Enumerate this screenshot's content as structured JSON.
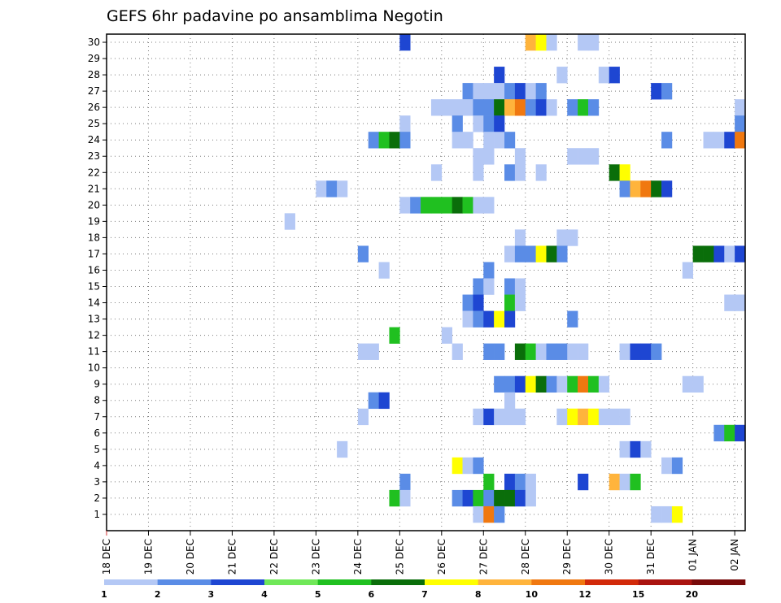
{
  "chart_data": {
    "type": "heatmap",
    "title": "GEFS 6hr padavine po ansamblima Negotin",
    "xlabel": "",
    "ylabel": "",
    "x_tick_labels": [
      "18 DEC",
      "19 DEC",
      "20 DEC",
      "21 DEC",
      "22 DEC",
      "23 DEC",
      "24 DEC",
      "25 DEC",
      "26 DEC",
      "27 DEC",
      "28 DEC",
      "29 DEC",
      "30 DEC",
      "31 DEC",
      "01 JAN",
      "02 JAN"
    ],
    "y_tick_labels": [
      "1",
      "2",
      "3",
      "4",
      "5",
      "6",
      "7",
      "8",
      "9",
      "10",
      "11",
      "12",
      "13",
      "14",
      "15",
      "16",
      "17",
      "18",
      "19",
      "20",
      "21",
      "22",
      "23",
      "24",
      "25",
      "26",
      "27",
      "28",
      "29",
      "30"
    ],
    "x_unit": "6-hour step from 18 DEC 00Z",
    "grid": true,
    "colorbar": {
      "levels": [
        "1",
        "2",
        "3",
        "4",
        "5",
        "6",
        "7",
        "8",
        "10",
        "12",
        "15",
        "20"
      ],
      "colors": [
        "#b4c8f5",
        "#5a8ce6",
        "#1e46d2",
        "#70e858",
        "#20c020",
        "#0a6e0a",
        "#ffff00",
        "#ffb43c",
        "#f07810",
        "#d22a0a",
        "#aa1410",
        "#780a0a"
      ]
    },
    "cells": [
      {
        "m": 30,
        "t": 28,
        "v": 3
      },
      {
        "m": 30,
        "t": 40,
        "v": 8
      },
      {
        "m": 30,
        "t": 41,
        "v": 7
      },
      {
        "m": 30,
        "t": 42,
        "v": 1
      },
      {
        "m": 30,
        "t": 45,
        "v": 1
      },
      {
        "m": 30,
        "t": 46,
        "v": 1
      },
      {
        "m": 28,
        "t": 37,
        "v": 3
      },
      {
        "m": 28,
        "t": 43,
        "v": 1
      },
      {
        "m": 28,
        "t": 47,
        "v": 1
      },
      {
        "m": 28,
        "t": 48,
        "v": 3
      },
      {
        "m": 27,
        "t": 34,
        "v": 2
      },
      {
        "m": 27,
        "t": 35,
        "v": 1
      },
      {
        "m": 27,
        "t": 36,
        "v": 1
      },
      {
        "m": 27,
        "t": 37,
        "v": 1
      },
      {
        "m": 27,
        "t": 38,
        "v": 2
      },
      {
        "m": 27,
        "t": 39,
        "v": 3
      },
      {
        "m": 27,
        "t": 40,
        "v": 1
      },
      {
        "m": 27,
        "t": 41,
        "v": 2
      },
      {
        "m": 27,
        "t": 52,
        "v": 3
      },
      {
        "m": 27,
        "t": 53,
        "v": 2
      },
      {
        "m": 26,
        "t": 31,
        "v": 1
      },
      {
        "m": 26,
        "t": 32,
        "v": 1
      },
      {
        "m": 26,
        "t": 33,
        "v": 1
      },
      {
        "m": 26,
        "t": 34,
        "v": 1
      },
      {
        "m": 26,
        "t": 35,
        "v": 2
      },
      {
        "m": 26,
        "t": 36,
        "v": 2
      },
      {
        "m": 26,
        "t": 37,
        "v": 6
      },
      {
        "m": 26,
        "t": 38,
        "v": 8
      },
      {
        "m": 26,
        "t": 39,
        "v": 10
      },
      {
        "m": 26,
        "t": 40,
        "v": 2
      },
      {
        "m": 26,
        "t": 41,
        "v": 3
      },
      {
        "m": 26,
        "t": 42,
        "v": 1
      },
      {
        "m": 26,
        "t": 44,
        "v": 2
      },
      {
        "m": 26,
        "t": 45,
        "v": 5
      },
      {
        "m": 26,
        "t": 46,
        "v": 2
      },
      {
        "m": 26,
        "t": 60,
        "v": 1
      },
      {
        "m": 25,
        "t": 28,
        "v": 1
      },
      {
        "m": 25,
        "t": 33,
        "v": 2
      },
      {
        "m": 25,
        "t": 35,
        "v": 1
      },
      {
        "m": 25,
        "t": 36,
        "v": 2
      },
      {
        "m": 25,
        "t": 37,
        "v": 3
      },
      {
        "m": 25,
        "t": 60,
        "v": 2
      },
      {
        "m": 24,
        "t": 25,
        "v": 2
      },
      {
        "m": 24,
        "t": 26,
        "v": 5
      },
      {
        "m": 24,
        "t": 27,
        "v": 6
      },
      {
        "m": 24,
        "t": 28,
        "v": 2
      },
      {
        "m": 24,
        "t": 33,
        "v": 1
      },
      {
        "m": 24,
        "t": 34,
        "v": 1
      },
      {
        "m": 24,
        "t": 36,
        "v": 1
      },
      {
        "m": 24,
        "t": 37,
        "v": 1
      },
      {
        "m": 24,
        "t": 38,
        "v": 2
      },
      {
        "m": 24,
        "t": 53,
        "v": 2
      },
      {
        "m": 24,
        "t": 57,
        "v": 1
      },
      {
        "m": 24,
        "t": 58,
        "v": 1
      },
      {
        "m": 24,
        "t": 59,
        "v": 3
      },
      {
        "m": 24,
        "t": 60,
        "v": 10
      },
      {
        "m": 23,
        "t": 35,
        "v": 1
      },
      {
        "m": 23,
        "t": 36,
        "v": 1
      },
      {
        "m": 23,
        "t": 39,
        "v": 1
      },
      {
        "m": 23,
        "t": 44,
        "v": 1
      },
      {
        "m": 23,
        "t": 45,
        "v": 1
      },
      {
        "m": 23,
        "t": 46,
        "v": 1
      },
      {
        "m": 22,
        "t": 31,
        "v": 1
      },
      {
        "m": 22,
        "t": 35,
        "v": 1
      },
      {
        "m": 22,
        "t": 38,
        "v": 2
      },
      {
        "m": 22,
        "t": 39,
        "v": 1
      },
      {
        "m": 22,
        "t": 41,
        "v": 1
      },
      {
        "m": 22,
        "t": 48,
        "v": 6
      },
      {
        "m": 22,
        "t": 49,
        "v": 7
      },
      {
        "m": 21,
        "t": 20,
        "v": 1
      },
      {
        "m": 21,
        "t": 21,
        "v": 2
      },
      {
        "m": 21,
        "t": 22,
        "v": 1
      },
      {
        "m": 21,
        "t": 49,
        "v": 2
      },
      {
        "m": 21,
        "t": 50,
        "v": 8
      },
      {
        "m": 21,
        "t": 51,
        "v": 10
      },
      {
        "m": 21,
        "t": 52,
        "v": 6
      },
      {
        "m": 21,
        "t": 53,
        "v": 3
      },
      {
        "m": 20,
        "t": 28,
        "v": 1
      },
      {
        "m": 20,
        "t": 29,
        "v": 2
      },
      {
        "m": 20,
        "t": 30,
        "v": 5
      },
      {
        "m": 20,
        "t": 31,
        "v": 5
      },
      {
        "m": 20,
        "t": 32,
        "v": 5
      },
      {
        "m": 20,
        "t": 33,
        "v": 6
      },
      {
        "m": 20,
        "t": 34,
        "v": 5
      },
      {
        "m": 20,
        "t": 35,
        "v": 1
      },
      {
        "m": 20,
        "t": 36,
        "v": 1
      },
      {
        "m": 19,
        "t": 17,
        "v": 1
      },
      {
        "m": 18,
        "t": 39,
        "v": 1
      },
      {
        "m": 18,
        "t": 43,
        "v": 1
      },
      {
        "m": 18,
        "t": 44,
        "v": 1
      },
      {
        "m": 17,
        "t": 24,
        "v": 2
      },
      {
        "m": 17,
        "t": 38,
        "v": 1
      },
      {
        "m": 17,
        "t": 39,
        "v": 2
      },
      {
        "m": 17,
        "t": 40,
        "v": 2
      },
      {
        "m": 17,
        "t": 41,
        "v": 7
      },
      {
        "m": 17,
        "t": 42,
        "v": 6
      },
      {
        "m": 17,
        "t": 43,
        "v": 2
      },
      {
        "m": 17,
        "t": 56,
        "v": 6
      },
      {
        "m": 17,
        "t": 57,
        "v": 6
      },
      {
        "m": 17,
        "t": 58,
        "v": 3
      },
      {
        "m": 17,
        "t": 59,
        "v": 1
      },
      {
        "m": 17,
        "t": 60,
        "v": 3
      },
      {
        "m": 16,
        "t": 26,
        "v": 1
      },
      {
        "m": 16,
        "t": 36,
        "v": 2
      },
      {
        "m": 16,
        "t": 55,
        "v": 1
      },
      {
        "m": 15,
        "t": 35,
        "v": 2
      },
      {
        "m": 15,
        "t": 36,
        "v": 1
      },
      {
        "m": 15,
        "t": 38,
        "v": 2
      },
      {
        "m": 15,
        "t": 39,
        "v": 1
      },
      {
        "m": 14,
        "t": 34,
        "v": 2
      },
      {
        "m": 14,
        "t": 35,
        "v": 3
      },
      {
        "m": 14,
        "t": 38,
        "v": 5
      },
      {
        "m": 14,
        "t": 39,
        "v": 1
      },
      {
        "m": 14,
        "t": 59,
        "v": 1
      },
      {
        "m": 14,
        "t": 60,
        "v": 1
      },
      {
        "m": 13,
        "t": 34,
        "v": 1
      },
      {
        "m": 13,
        "t": 35,
        "v": 2
      },
      {
        "m": 13,
        "t": 36,
        "v": 3
      },
      {
        "m": 13,
        "t": 37,
        "v": 7
      },
      {
        "m": 13,
        "t": 38,
        "v": 3
      },
      {
        "m": 13,
        "t": 44,
        "v": 2
      },
      {
        "m": 12,
        "t": 27,
        "v": 5
      },
      {
        "m": 12,
        "t": 32,
        "v": 1
      },
      {
        "m": 11,
        "t": 24,
        "v": 1
      },
      {
        "m": 11,
        "t": 25,
        "v": 1
      },
      {
        "m": 11,
        "t": 33,
        "v": 1
      },
      {
        "m": 11,
        "t": 36,
        "v": 2
      },
      {
        "m": 11,
        "t": 37,
        "v": 2
      },
      {
        "m": 11,
        "t": 39,
        "v": 6
      },
      {
        "m": 11,
        "t": 40,
        "v": 5
      },
      {
        "m": 11,
        "t": 41,
        "v": 1
      },
      {
        "m": 11,
        "t": 42,
        "v": 2
      },
      {
        "m": 11,
        "t": 43,
        "v": 2
      },
      {
        "m": 11,
        "t": 44,
        "v": 1
      },
      {
        "m": 11,
        "t": 45,
        "v": 1
      },
      {
        "m": 11,
        "t": 49,
        "v": 1
      },
      {
        "m": 11,
        "t": 50,
        "v": 3
      },
      {
        "m": 11,
        "t": 51,
        "v": 3
      },
      {
        "m": 11,
        "t": 52,
        "v": 2
      },
      {
        "m": 9,
        "t": 37,
        "v": 2
      },
      {
        "m": 9,
        "t": 38,
        "v": 2
      },
      {
        "m": 9,
        "t": 39,
        "v": 3
      },
      {
        "m": 9,
        "t": 40,
        "v": 7
      },
      {
        "m": 9,
        "t": 41,
        "v": 6
      },
      {
        "m": 9,
        "t": 42,
        "v": 2
      },
      {
        "m": 9,
        "t": 43,
        "v": 1
      },
      {
        "m": 9,
        "t": 44,
        "v": 5
      },
      {
        "m": 9,
        "t": 45,
        "v": 10
      },
      {
        "m": 9,
        "t": 46,
        "v": 5
      },
      {
        "m": 9,
        "t": 47,
        "v": 1
      },
      {
        "m": 9,
        "t": 55,
        "v": 1
      },
      {
        "m": 9,
        "t": 56,
        "v": 1
      },
      {
        "m": 8,
        "t": 25,
        "v": 2
      },
      {
        "m": 8,
        "t": 26,
        "v": 3
      },
      {
        "m": 8,
        "t": 38,
        "v": 1
      },
      {
        "m": 7,
        "t": 24,
        "v": 1
      },
      {
        "m": 7,
        "t": 35,
        "v": 1
      },
      {
        "m": 7,
        "t": 36,
        "v": 3
      },
      {
        "m": 7,
        "t": 37,
        "v": 1
      },
      {
        "m": 7,
        "t": 38,
        "v": 1
      },
      {
        "m": 7,
        "t": 39,
        "v": 1
      },
      {
        "m": 7,
        "t": 43,
        "v": 1
      },
      {
        "m": 7,
        "t": 44,
        "v": 7
      },
      {
        "m": 7,
        "t": 45,
        "v": 8
      },
      {
        "m": 7,
        "t": 46,
        "v": 7
      },
      {
        "m": 7,
        "t": 47,
        "v": 1
      },
      {
        "m": 7,
        "t": 48,
        "v": 1
      },
      {
        "m": 7,
        "t": 49,
        "v": 1
      },
      {
        "m": 6,
        "t": 58,
        "v": 2
      },
      {
        "m": 6,
        "t": 59,
        "v": 5
      },
      {
        "m": 6,
        "t": 60,
        "v": 3
      },
      {
        "m": 5,
        "t": 22,
        "v": 1
      },
      {
        "m": 5,
        "t": 49,
        "v": 1
      },
      {
        "m": 5,
        "t": 50,
        "v": 3
      },
      {
        "m": 5,
        "t": 51,
        "v": 1
      },
      {
        "m": 4,
        "t": 33,
        "v": 7
      },
      {
        "m": 4,
        "t": 34,
        "v": 1
      },
      {
        "m": 4,
        "t": 35,
        "v": 2
      },
      {
        "m": 4,
        "t": 53,
        "v": 1
      },
      {
        "m": 4,
        "t": 54,
        "v": 2
      },
      {
        "m": 3,
        "t": 28,
        "v": 2
      },
      {
        "m": 3,
        "t": 36,
        "v": 5
      },
      {
        "m": 3,
        "t": 38,
        "v": 3
      },
      {
        "m": 3,
        "t": 39,
        "v": 2
      },
      {
        "m": 3,
        "t": 40,
        "v": 1
      },
      {
        "m": 3,
        "t": 45,
        "v": 3
      },
      {
        "m": 3,
        "t": 48,
        "v": 8
      },
      {
        "m": 3,
        "t": 49,
        "v": 1
      },
      {
        "m": 3,
        "t": 50,
        "v": 5
      },
      {
        "m": 2,
        "t": 27,
        "v": 5
      },
      {
        "m": 2,
        "t": 28,
        "v": 1
      },
      {
        "m": 2,
        "t": 33,
        "v": 2
      },
      {
        "m": 2,
        "t": 34,
        "v": 3
      },
      {
        "m": 2,
        "t": 35,
        "v": 5
      },
      {
        "m": 2,
        "t": 36,
        "v": 2
      },
      {
        "m": 2,
        "t": 37,
        "v": 6
      },
      {
        "m": 2,
        "t": 38,
        "v": 6
      },
      {
        "m": 2,
        "t": 39,
        "v": 3
      },
      {
        "m": 2,
        "t": 40,
        "v": 1
      },
      {
        "m": 1,
        "t": 35,
        "v": 1
      },
      {
        "m": 1,
        "t": 36,
        "v": 10
      },
      {
        "m": 1,
        "t": 37,
        "v": 2
      },
      {
        "m": 1,
        "t": 52,
        "v": 1
      },
      {
        "m": 1,
        "t": 53,
        "v": 1
      },
      {
        "m": 1,
        "t": 54,
        "v": 7
      }
    ]
  }
}
